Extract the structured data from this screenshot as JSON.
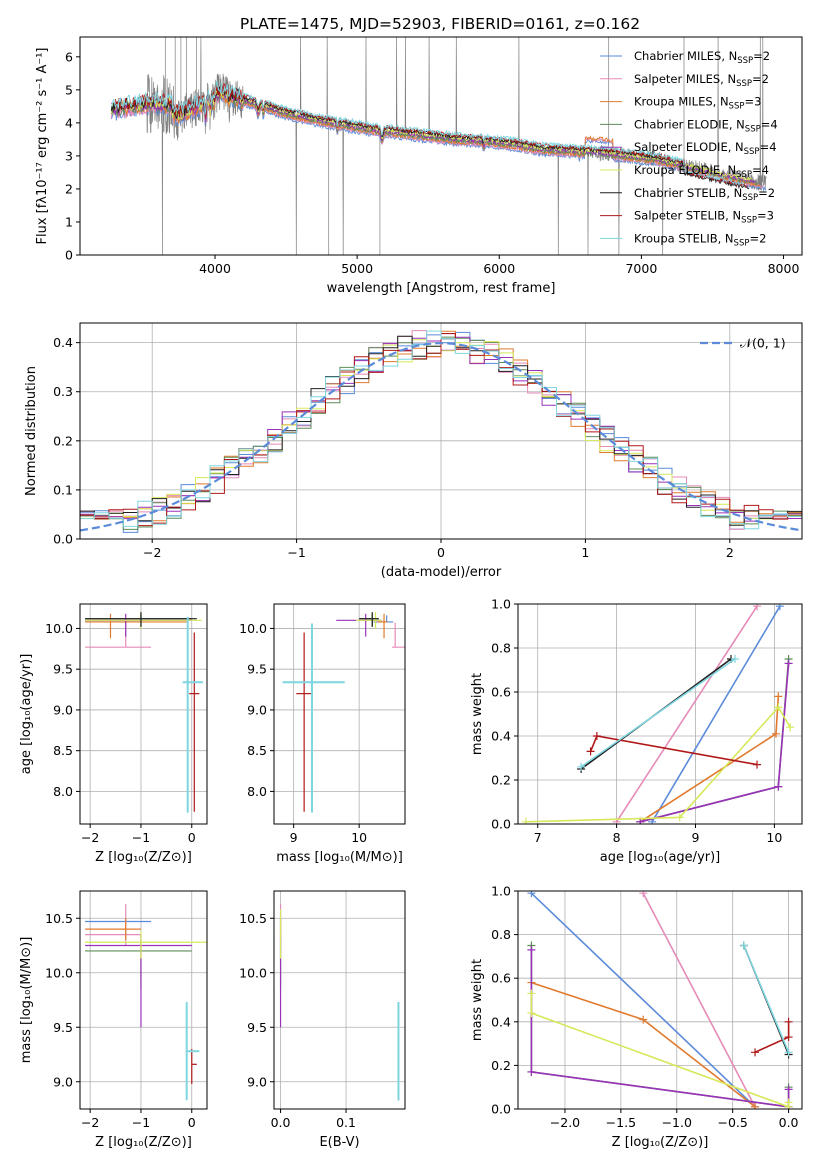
{
  "colors": {
    "Chabrier MILES": "#5b8bd9",
    "Salpeter MILES": "#e58bb8",
    "Kroupa MILES": "#e07a2e",
    "Chabrier ELODIE": "#5e8c5a",
    "Salpeter ELODIE": "#9932b8",
    "Kroupa ELODIE": "#d7e85a",
    "Chabrier STELIB": "#202020",
    "Salpeter STELIB": "#b01818",
    "Kroupa STELIB": "#7fd6e0",
    "data": "#808080"
  },
  "chart_data": [
    {
      "id": "spectrum",
      "type": "line",
      "title": "PLATE=1475, MJD=52903, FIBERID=0161, z=0.162",
      "xlabel": "wavelength [Angstrom, rest frame]",
      "ylabel": "Flux [fλ10⁻¹⁷ erg cm⁻² s⁻¹ A⁻¹]",
      "xlim": [
        3050,
        8130
      ],
      "ylim": [
        0,
        6.6
      ],
      "xticks": [
        4000,
        5000,
        6000,
        7000,
        8000
      ],
      "yticks": [
        0,
        1,
        2,
        3,
        4,
        5,
        6
      ],
      "legend": "top-right",
      "legend_entries": [
        {
          "model": "Chabrier MILES",
          "label": "Chabrier MILES, N",
          "sub": "SSP",
          "tail": "=2"
        },
        {
          "model": "Salpeter MILES",
          "label": "Salpeter MILES, N",
          "sub": "SSP",
          "tail": "=2"
        },
        {
          "model": "Kroupa MILES",
          "label": "Kroupa MILES, N",
          "sub": "SSP",
          "tail": "=3"
        },
        {
          "model": "Chabrier ELODIE",
          "label": "Chabrier ELODIE, N",
          "sub": "SSP",
          "tail": "=4"
        },
        {
          "model": "Salpeter ELODIE",
          "label": "Salpeter ELODIE, N",
          "sub": "SSP",
          "tail": "=4"
        },
        {
          "model": "Kroupa ELODIE",
          "label": "Kroupa ELODIE, N",
          "sub": "SSP",
          "tail": "=4"
        },
        {
          "model": "Chabrier STELIB",
          "label": "Chabrier STELIB, N",
          "sub": "SSP",
          "tail": "=2"
        },
        {
          "model": "Salpeter STELIB",
          "label": "Salpeter STELIB, N",
          "sub": "SSP",
          "tail": "=3"
        },
        {
          "model": "Kroupa STELIB",
          "label": "Kroupa STELIB, N",
          "sub": "SSP",
          "tail": "=2"
        }
      ],
      "continuum": {
        "x": [
          3270,
          3400,
          3550,
          3650,
          3750,
          3850,
          3950,
          4050,
          4200,
          4350,
          4500,
          4700,
          4900,
          5100,
          5300,
          5500,
          5700,
          5900,
          6100,
          6300,
          6500,
          6700,
          6900,
          7100,
          7300,
          7500,
          7700,
          7900
        ],
        "y": [
          4.4,
          4.5,
          4.6,
          4.55,
          4.5,
          4.7,
          4.9,
          4.9,
          4.7,
          4.5,
          4.3,
          4.1,
          3.95,
          3.8,
          3.7,
          3.6,
          3.5,
          3.45,
          3.35,
          3.2,
          3.15,
          3.1,
          3.0,
          2.9,
          2.7,
          2.5,
          2.3,
          2.15
        ]
      },
      "data_range": [
        3520,
        7880
      ],
      "model_range": [
        3270,
        7880
      ]
    },
    {
      "id": "residuals",
      "type": "histogram",
      "xlabel": "(data-model)/error",
      "ylabel": "Normed distribution",
      "xlim": [
        -2.5,
        2.5
      ],
      "ylim": [
        0,
        0.44
      ],
      "xticks": [
        -2,
        -1,
        0,
        1,
        2
      ],
      "yticks": [
        0.0,
        0.1,
        0.2,
        0.3,
        0.4
      ],
      "grid": true,
      "legend": "top-right",
      "legend_label": "𝒩(0, 1)",
      "bins": 50,
      "bin_width": 0.1
    },
    {
      "id": "age-vs-Z",
      "type": "errorbar",
      "xlabel": "Z [log₁₀(Z/Z⊙)]",
      "ylabel": "age  [log₁₀(age/yr)]",
      "xlim": [
        -2.2,
        0.3
      ],
      "ylim": [
        7.6,
        10.3
      ],
      "xticks": [
        -2,
        -1,
        0
      ],
      "yticks": [
        8.0,
        8.5,
        9.0,
        9.5,
        10.0
      ],
      "grid": true,
      "points": [
        {
          "model": "Chabrier MILES",
          "x": -1.0,
          "xerr": [
            1.1,
            0.0
          ],
          "y": 10.08,
          "yerr": [
            0.0,
            0.08
          ]
        },
        {
          "model": "Salpeter MILES",
          "x": -1.3,
          "xerr": [
            0.8,
            0.5
          ],
          "y": 9.77,
          "yerr": [
            0.0,
            0.3
          ]
        },
        {
          "model": "Kroupa MILES",
          "x": -1.6,
          "xerr": [
            0.5,
            1.5
          ],
          "y": 10.08,
          "yerr": [
            0.2,
            0.1
          ]
        },
        {
          "model": "Chabrier ELODIE",
          "x": -1.0,
          "xerr": [
            1.1,
            1.0
          ],
          "y": 10.12,
          "yerr": [
            0.1,
            0.06
          ]
        },
        {
          "model": "Salpeter ELODIE",
          "x": -1.3,
          "xerr": [
            0.8,
            1.3
          ],
          "y": 10.1,
          "yerr": [
            0.2,
            0.08
          ]
        },
        {
          "model": "Kroupa ELODIE",
          "x": -1.0,
          "xerr": [
            1.1,
            1.2
          ],
          "y": 10.1,
          "yerr": [
            0.1,
            0.1
          ]
        },
        {
          "model": "Chabrier STELIB",
          "x": -1.0,
          "xerr": [
            1.1,
            1.1
          ],
          "y": 10.12,
          "yerr": [
            0.1,
            0.08
          ]
        },
        {
          "model": "Salpeter STELIB",
          "x": 0.05,
          "xerr": [
            0.1,
            0.1
          ],
          "y": 9.2,
          "yerr": [
            1.45,
            0.75
          ]
        },
        {
          "model": "Kroupa STELIB",
          "x": -0.08,
          "xerr": [
            0.1,
            0.3
          ],
          "y": 9.34,
          "yerr": [
            1.6,
            0.8
          ]
        }
      ]
    },
    {
      "id": "age-vs-mass",
      "type": "errorbar",
      "xlabel": "mass [log₁₀(M/M⊙)]",
      "ylabel": "",
      "xlim": [
        8.7,
        10.7
      ],
      "ylim": [
        7.6,
        10.3
      ],
      "xticks": [
        9,
        10
      ],
      "yticks": [
        8.0,
        8.5,
        9.0,
        9.5,
        10.0
      ],
      "grid": true,
      "points": [
        {
          "model": "Chabrier MILES",
          "x": 10.42,
          "xerr": [
            0.2,
            0.1
          ],
          "y": 10.08,
          "yerr": [
            0.0,
            0.08
          ]
        },
        {
          "model": "Salpeter MILES",
          "x": 10.55,
          "xerr": [
            0.05,
            0.22
          ],
          "y": 9.77,
          "yerr": [
            0.0,
            0.3
          ]
        },
        {
          "model": "Kroupa MILES",
          "x": 10.38,
          "xerr": [
            0.1,
            0.05
          ],
          "y": 10.08,
          "yerr": [
            0.2,
            0.1
          ]
        },
        {
          "model": "Chabrier ELODIE",
          "x": 10.2,
          "xerr": [
            0.2,
            0.1
          ],
          "y": 10.12,
          "yerr": [
            0.1,
            0.06
          ]
        },
        {
          "model": "Salpeter ELODIE",
          "x": 10.1,
          "xerr": [
            0.45,
            0.25
          ],
          "y": 10.1,
          "yerr": [
            0.2,
            0.08
          ]
        },
        {
          "model": "Kroupa ELODIE",
          "x": 10.25,
          "xerr": [
            0.3,
            0.1
          ],
          "y": 10.1,
          "yerr": [
            0.1,
            0.1
          ]
        },
        {
          "model": "Chabrier STELIB",
          "x": 10.2,
          "xerr": [
            0.2,
            0.1
          ],
          "y": 10.12,
          "yerr": [
            0.1,
            0.08
          ]
        },
        {
          "model": "Salpeter STELIB",
          "x": 9.16,
          "xerr": [
            0.12,
            0.12
          ],
          "y": 9.2,
          "yerr": [
            1.45,
            0.75
          ]
        },
        {
          "model": "Kroupa STELIB",
          "x": 9.28,
          "xerr": [
            0.45,
            0.5
          ],
          "y": 9.34,
          "yerr": [
            1.6,
            0.72
          ]
        }
      ]
    },
    {
      "id": "massweight-vs-age",
      "type": "line",
      "xlabel": "age  [log₁₀(age/yr)]",
      "ylabel": "mass weight",
      "xlim": [
        6.75,
        10.35
      ],
      "ylim": [
        0,
        1.0
      ],
      "xticks": [
        7,
        8,
        9,
        10
      ],
      "yticks": [
        0.0,
        0.2,
        0.4,
        0.6,
        0.8,
        1.0
      ],
      "grid": true,
      "series": [
        {
          "model": "Chabrier MILES",
          "x": [
            8.45,
            10.07
          ],
          "y": [
            0.01,
            0.99
          ]
        },
        {
          "model": "Salpeter MILES",
          "x": [
            8.0,
            9.78
          ],
          "y": [
            0.01,
            0.99
          ]
        },
        {
          "model": "Kroupa MILES",
          "x": [
            8.3,
            10.02,
            10.05
          ],
          "y": [
            0.01,
            0.41,
            0.58
          ]
        },
        {
          "model": "Chabrier ELODIE",
          "x": [
            8.3,
            10.05,
            10.18
          ],
          "y": [
            0.01,
            0.17,
            0.75
          ]
        },
        {
          "model": "Salpeter ELODIE",
          "x": [
            8.3,
            10.05,
            10.18
          ],
          "y": [
            0.01,
            0.17,
            0.73
          ]
        },
        {
          "model": "Kroupa ELODIE",
          "x": [
            6.85,
            8.8,
            10.05,
            10.2
          ],
          "y": [
            0.01,
            0.03,
            0.53,
            0.44
          ]
        },
        {
          "model": "Chabrier STELIB",
          "x": [
            7.55,
            9.45
          ],
          "y": [
            0.25,
            0.75
          ]
        },
        {
          "model": "Salpeter STELIB",
          "x": [
            7.67,
            7.75,
            9.78
          ],
          "y": [
            0.33,
            0.4,
            0.27
          ]
        },
        {
          "model": "Kroupa STELIB",
          "x": [
            7.55,
            9.5
          ],
          "y": [
            0.26,
            0.75
          ]
        }
      ]
    },
    {
      "id": "mass-vs-Z",
      "type": "errorbar",
      "xlabel": "Z [log₁₀(Z/Z⊙)]",
      "ylabel": "mass [log₁₀(M/M⊙)]",
      "xlim": [
        -2.2,
        0.3
      ],
      "ylim": [
        8.75,
        10.75
      ],
      "xticks": [
        -2,
        -1,
        0
      ],
      "yticks": [
        9.0,
        9.5,
        10.0,
        10.5
      ],
      "grid": true,
      "points": [
        {
          "model": "Chabrier MILES",
          "x": -1.3,
          "xerr": [
            0.8,
            0.5
          ],
          "y": 10.47,
          "yerr": [
            0.0,
            0.0
          ]
        },
        {
          "model": "Salpeter MILES",
          "x": -1.3,
          "xerr": [
            0.8,
            0.3
          ],
          "y": 10.35,
          "yerr": [
            0.1,
            0.28
          ]
        },
        {
          "model": "Kroupa MILES",
          "x": -1.3,
          "xerr": [
            0.8,
            0.3
          ],
          "y": 10.4,
          "yerr": [
            0.1,
            0.1
          ]
        },
        {
          "model": "Chabrier ELODIE",
          "x": -1.0,
          "xerr": [
            1.1,
            1.0
          ],
          "y": 10.2,
          "yerr": [
            0.35,
            0.1
          ]
        },
        {
          "model": "Salpeter ELODIE",
          "x": -1.0,
          "xerr": [
            1.1,
            1.0
          ],
          "y": 10.25,
          "yerr": [
            0.75,
            0.1
          ]
        },
        {
          "model": "Kroupa ELODIE",
          "x": -1.0,
          "xerr": [
            1.1,
            1.3
          ],
          "y": 10.28,
          "yerr": [
            0.15,
            0.1
          ]
        },
        {
          "model": "Chabrier STELIB",
          "x": -0.1,
          "xerr": [
            0.0,
            0.2
          ],
          "y": 9.28,
          "yerr": [
            0.0,
            0.0
          ]
        },
        {
          "model": "Salpeter STELIB",
          "x": 0.0,
          "xerr": [
            0.0,
            0.1
          ],
          "y": 9.16,
          "yerr": [
            0.18,
            0.14
          ]
        },
        {
          "model": "Kroupa STELIB",
          "x": -0.1,
          "xerr": [
            0.0,
            0.25
          ],
          "y": 9.28,
          "yerr": [
            0.45,
            0.45
          ]
        }
      ]
    },
    {
      "id": "mass-vs-ebv",
      "type": "errorbar",
      "xlabel": "E(B-V)",
      "ylabel": "",
      "xlim": [
        -0.01,
        0.19
      ],
      "ylim": [
        8.75,
        10.75
      ],
      "xticks": [
        0.0,
        0.1
      ],
      "yticks": [
        9.0,
        9.5,
        10.0,
        10.5
      ],
      "grid": true,
      "points": [
        {
          "model": "Chabrier MILES",
          "x": 0.0,
          "xerr": [
            0,
            0
          ],
          "y": 10.47,
          "yerr": [
            0.1,
            0.1
          ]
        },
        {
          "model": "Salpeter MILES",
          "x": 0.0,
          "xerr": [
            0,
            0
          ],
          "y": 10.35,
          "yerr": [
            0.1,
            0.28
          ]
        },
        {
          "model": "Kroupa MILES",
          "x": 0.0,
          "xerr": [
            0,
            0
          ],
          "y": 10.4,
          "yerr": [
            0.1,
            0.1
          ]
        },
        {
          "model": "Chabrier ELODIE",
          "x": 0.0,
          "xerr": [
            0,
            0
          ],
          "y": 10.2,
          "yerr": [
            0.35,
            0.1
          ]
        },
        {
          "model": "Salpeter ELODIE",
          "x": 0.0,
          "xerr": [
            0,
            0
          ],
          "y": 10.25,
          "yerr": [
            0.75,
            0.1
          ]
        },
        {
          "model": "Kroupa ELODIE",
          "x": 0.0,
          "xerr": [
            0,
            0
          ],
          "y": 10.28,
          "yerr": [
            0.15,
            0.3
          ]
        },
        {
          "model": "Chabrier STELIB",
          "x": 0.18,
          "xerr": [
            0,
            0
          ],
          "y": 9.28,
          "yerr": [
            0.45,
            0.45
          ]
        },
        {
          "model": "Salpeter STELIB",
          "x": 0.18,
          "xerr": [
            0,
            0
          ],
          "y": 9.16,
          "yerr": [
            0.18,
            0.14
          ]
        },
        {
          "model": "Kroupa STELIB",
          "x": 0.18,
          "xerr": [
            0,
            0
          ],
          "y": 9.28,
          "yerr": [
            0.45,
            0.45
          ]
        }
      ]
    },
    {
      "id": "massweight-vs-Z",
      "type": "line",
      "xlabel": "Z [log₁₀(Z/Z⊙)]",
      "ylabel": "mass weight",
      "xlim": [
        -2.42,
        0.12
      ],
      "ylim": [
        0,
        1.0
      ],
      "xticks": [
        -2.0,
        -1.5,
        -1.0,
        -0.5,
        0.0
      ],
      "yticks": [
        0.0,
        0.2,
        0.4,
        0.6,
        0.8,
        1.0
      ],
      "grid": true,
      "series": [
        {
          "model": "Chabrier MILES",
          "x": [
            -2.3,
            -0.3
          ],
          "y": [
            0.99,
            0.01
          ]
        },
        {
          "model": "Salpeter MILES",
          "x": [
            -1.3,
            -0.3
          ],
          "y": [
            0.99,
            0.01
          ]
        },
        {
          "model": "Kroupa MILES",
          "x": [
            -2.3,
            -1.3,
            -0.3
          ],
          "y": [
            0.58,
            0.41,
            0.01
          ]
        },
        {
          "model": "Chabrier ELODIE",
          "x": [
            -2.3,
            -2.3,
            0.0,
            0.0
          ],
          "y": [
            0.75,
            0.17,
            0.01,
            0.1
          ]
        },
        {
          "model": "Salpeter ELODIE",
          "x": [
            -2.3,
            -2.3,
            0.0,
            0.0
          ],
          "y": [
            0.73,
            0.17,
            0.01,
            0.09
          ]
        },
        {
          "model": "Kroupa ELODIE",
          "x": [
            -2.3,
            -2.3,
            0.0,
            0.0
          ],
          "y": [
            0.53,
            0.44,
            0.01,
            0.03
          ]
        },
        {
          "model": "Chabrier STELIB",
          "x": [
            -0.4,
            0.0
          ],
          "y": [
            0.75,
            0.25
          ]
        },
        {
          "model": "Salpeter STELIB",
          "x": [
            -0.3,
            0.0,
            0.0
          ],
          "y": [
            0.26,
            0.33,
            0.4
          ]
        },
        {
          "model": "Kroupa STELIB",
          "x": [
            -0.4,
            0.0
          ],
          "y": [
            0.75,
            0.26
          ]
        }
      ]
    }
  ]
}
